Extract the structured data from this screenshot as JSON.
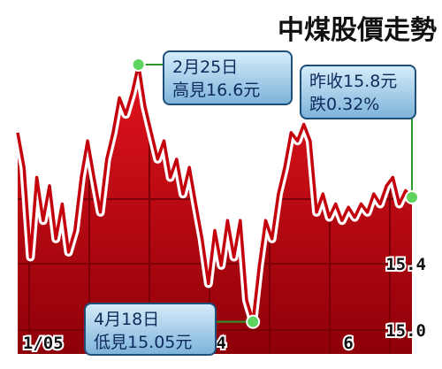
{
  "chart_data": {
    "type": "line",
    "title": "中煤股價走勢",
    "categories": [
      null,
      null,
      null,
      null,
      "1/05",
      null,
      null,
      null,
      null,
      null,
      null,
      null,
      null,
      null,
      null,
      null,
      null,
      null,
      null,
      null,
      null,
      null,
      null,
      null,
      null,
      null,
      null,
      null,
      null,
      null,
      null,
      null,
      "4",
      null,
      null,
      null,
      null,
      null,
      null,
      null,
      null,
      null,
      null,
      null,
      null,
      null,
      null,
      null,
      null,
      null,
      null,
      null,
      "6",
      null,
      null,
      null,
      null,
      null,
      null,
      null,
      null,
      null,
      null
    ],
    "values": [
      16.19,
      15.98,
      15.44,
      15.92,
      15.66,
      15.87,
      15.55,
      15.76,
      15.47,
      15.6,
      15.92,
      16.14,
      15.92,
      15.71,
      16.03,
      16.19,
      16.4,
      16.3,
      16.43,
      16.6,
      16.35,
      16.19,
      16.03,
      16.14,
      15.92,
      16.03,
      15.82,
      15.98,
      15.76,
      15.55,
      15.28,
      15.6,
      15.39,
      15.66,
      15.44,
      15.66,
      15.18,
      15.05,
      15.39,
      15.66,
      15.55,
      15.82,
      15.98,
      16.19,
      16.14,
      16.24,
      16.14,
      15.71,
      15.82,
      15.68,
      15.76,
      15.66,
      15.74,
      15.68,
      15.76,
      15.71,
      15.82,
      15.76,
      15.87,
      15.92,
      15.76,
      15.84,
      15.8
    ],
    "ylim": [
      14.856,
      16.776
    ],
    "yticks": [
      15.4,
      {
        "value": 15.0,
        "label": "15.0"
      }
    ],
    "grid": true,
    "annotations": [
      {
        "lines": [
          "2月25日",
          "高見16.6元"
        ]
      },
      {
        "lines": [
          "昨收15.8元",
          "跌0.32%"
        ]
      },
      {
        "lines": [
          "4月18日",
          "低見15.05元"
        ]
      }
    ]
  }
}
